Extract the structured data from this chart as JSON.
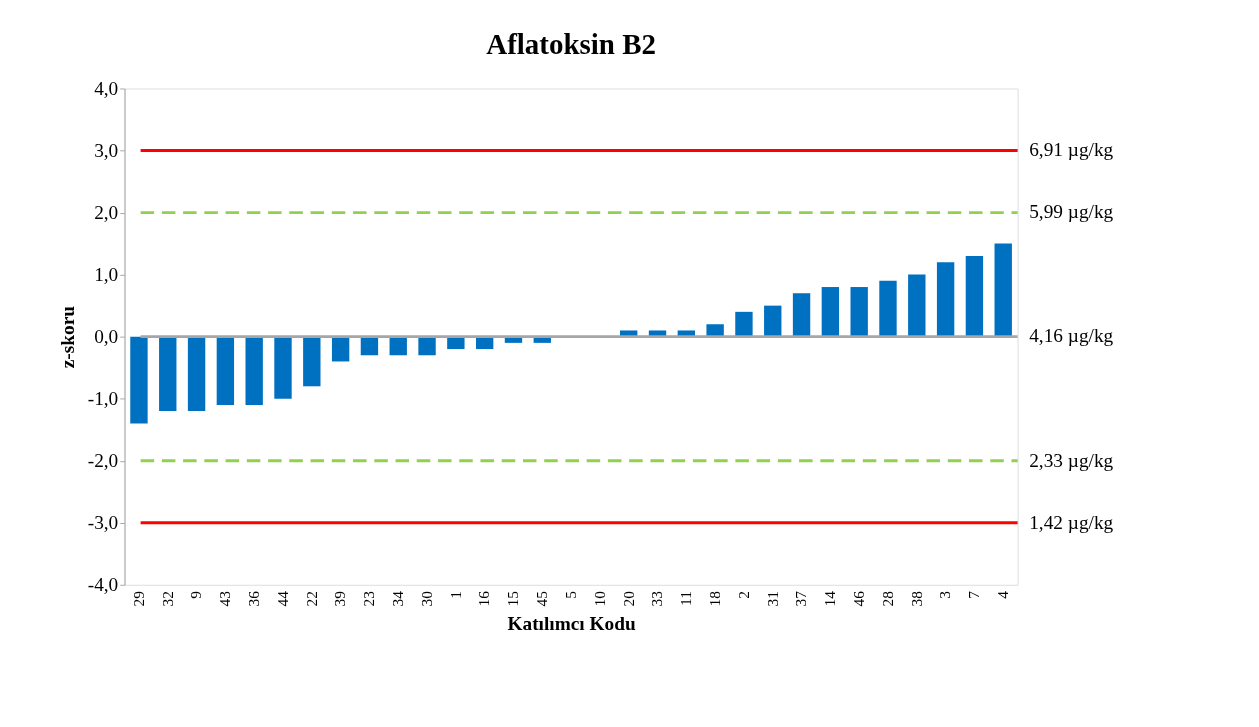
{
  "chart_data": {
    "type": "bar",
    "title": "Aflatoksin B2",
    "xlabel": "Katılımcı Kodu",
    "ylabel": "z-skoru",
    "categories": [
      "29",
      "32",
      "9",
      "43",
      "36",
      "44",
      "22",
      "39",
      "23",
      "34",
      "30",
      "1",
      "16",
      "15",
      "45",
      "5",
      "10",
      "20",
      "33",
      "11",
      "18",
      "2",
      "31",
      "37",
      "14",
      "46",
      "28",
      "38",
      "3",
      "7",
      "4"
    ],
    "values": [
      -1.4,
      -1.2,
      -1.2,
      -1.1,
      -1.1,
      -1.0,
      -0.8,
      -0.4,
      -0.3,
      -0.3,
      -0.3,
      -0.2,
      -0.2,
      -0.1,
      -0.1,
      0,
      0,
      0.1,
      0.1,
      0.1,
      0.2,
      0.4,
      0.5,
      0.7,
      0.8,
      0.8,
      0.9,
      1.0,
      1.2,
      1.3,
      1.5
    ],
    "color": "#0070c0",
    "ylim": [
      -4,
      4
    ],
    "yticks": [
      {
        "value": -4,
        "label": "-4,0"
      },
      {
        "value": -3,
        "label": "-3,0"
      },
      {
        "value": -2,
        "label": "-2,0"
      },
      {
        "value": -1,
        "label": "-1,0"
      },
      {
        "value": 0,
        "label": "0,0"
      },
      {
        "value": 1,
        "label": "1,0"
      },
      {
        "value": 2,
        "label": "2,0"
      },
      {
        "value": 3,
        "label": "3,0"
      },
      {
        "value": 4,
        "label": "4,0"
      }
    ],
    "ref_lines": [
      {
        "axis": "y",
        "value": 3,
        "label": "6,91 µg/kg",
        "color": "#ff0000",
        "line_style": "solid"
      },
      {
        "axis": "y",
        "value": 2,
        "label": "5,99 µg/kg",
        "color": "#92d050",
        "line_style": "dashed"
      },
      {
        "axis": "y",
        "value": 0,
        "label": "4,16 µg/kg",
        "color": "#a6a6a6",
        "line_style": "solid"
      },
      {
        "axis": "y",
        "value": -2,
        "label": "2,33 µg/kg",
        "color": "#92d050",
        "line_style": "dashed"
      },
      {
        "axis": "y",
        "value": -3,
        "label": "1,42 µg/kg",
        "color": "#ff0000",
        "line_style": "solid"
      }
    ],
    "grid": false
  }
}
